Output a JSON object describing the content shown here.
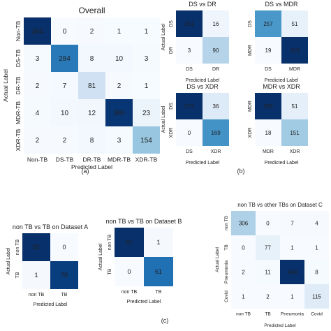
{
  "colors": {
    "scale": [
      "#f7fbff",
      "#deebf7",
      "#c6dbef",
      "#9ecae1",
      "#6baed6",
      "#4292c6",
      "#2171b5",
      "#08519c",
      "#08306b"
    ],
    "light_text": "#ffffff",
    "dark_text": "#222222"
  },
  "chart_data": [
    {
      "type": "heatmap",
      "title": "Overall",
      "xlabel": "Predicted Label",
      "ylabel": "Actual Label",
      "x_categories": [
        "Non-TB",
        "DS-TB",
        "DR-TB",
        "MDR-TB",
        "XDR-TB"
      ],
      "y_categories": [
        "Non-TB",
        "DS-TB",
        "DR-TB",
        "MDR-TB",
        "XDR-TB"
      ],
      "values": [
        [
          394,
          0,
          2,
          1,
          1
        ],
        [
          3,
          284,
          8,
          10,
          3
        ],
        [
          2,
          7,
          81,
          2,
          1
        ],
        [
          4,
          10,
          12,
          385,
          23
        ],
        [
          2,
          2,
          8,
          3,
          154
        ]
      ]
    },
    {
      "type": "heatmap",
      "title": "DS vs DR",
      "xlabel": "Predicted Label",
      "ylabel": "Actual Label",
      "x_categories": [
        "DS",
        "DR"
      ],
      "y_categories": [
        "DS",
        "DR"
      ],
      "values": [
        [
          291,
          16
        ],
        [
          3,
          90
        ]
      ]
    },
    {
      "type": "heatmap",
      "title": "DS vs MDR",
      "xlabel": "Predicted Label",
      "ylabel": "",
      "x_categories": [
        "DS",
        "MDR"
      ],
      "y_categories": [
        "DS",
        "MDR"
      ],
      "values": [
        [
          257,
          51
        ],
        [
          19,
          415
        ]
      ]
    },
    {
      "type": "heatmap",
      "title": "DS vs XDR",
      "xlabel": "Predicted Label",
      "ylabel": "Actual Label",
      "x_categories": [
        "DS",
        "XDR"
      ],
      "y_categories": [
        "DS",
        "XDR"
      ],
      "values": [
        [
          272,
          36
        ],
        [
          0,
          169
        ]
      ]
    },
    {
      "type": "heatmap",
      "title": "MDR vs XDR",
      "xlabel": "Predicted Label",
      "ylabel": "",
      "x_categories": [
        "MDR",
        "XDR"
      ],
      "y_categories": [
        "MDR",
        "XDR"
      ],
      "values": [
        [
          383,
          51
        ],
        [
          18,
          151
        ]
      ]
    },
    {
      "type": "heatmap",
      "title": "non TB vs TB on Dataset A",
      "xlabel": "Predicted Label",
      "ylabel": "Actual Label",
      "x_categories": [
        "non TB",
        "TB"
      ],
      "y_categories": [
        "non TB",
        "TB"
      ],
      "values": [
        [
          82,
          0
        ],
        [
          1,
          78
        ]
      ]
    },
    {
      "type": "heatmap",
      "title": "non TB vs TB on Dataset B",
      "xlabel": "Predicted Label",
      "ylabel": "Actual Label",
      "x_categories": [
        "non TB",
        "TB"
      ],
      "y_categories": [
        "non TB",
        "TB"
      ],
      "values": [
        [
          81,
          1
        ],
        [
          0,
          61
        ]
      ]
    },
    {
      "type": "heatmap",
      "title": "non TB vs other TBs on Dataset C",
      "xlabel": "Predicted Label",
      "ylabel": "Actual Label",
      "x_categories": [
        "non TB",
        "TB",
        "Pneumonia",
        "Covid"
      ],
      "y_categories": [
        "non TB",
        "TB",
        "Pneumonia",
        "Covid"
      ],
      "values": [
        [
          306,
          0,
          7,
          4
        ],
        [
          0,
          77,
          1,
          1
        ],
        [
          2,
          11,
          949,
          8
        ],
        [
          1,
          2,
          1,
          115
        ]
      ]
    }
  ],
  "captions": [
    "(a)",
    "(b)",
    "(c)"
  ]
}
